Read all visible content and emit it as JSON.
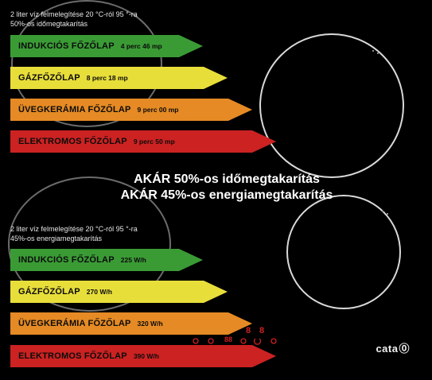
{
  "section_top": {
    "header_line1": "2 liter víz felmelegítése 20 °C-ról 95 °-ra",
    "header_line2": "50%-os időmegtakarítás",
    "bars": [
      {
        "name": "INDUKCIÓS FŐZŐLAP",
        "value": "4 perc 46 mp",
        "color": "#3a9b35"
      },
      {
        "name": "GÁZFŐZŐLAP",
        "value": "8 perc 18 mp",
        "color": "#e8de3a"
      },
      {
        "name": "ÜVEGKERÁMIA FŐZŐLAP",
        "value": "9 perc 00 mp",
        "color": "#e58a24"
      },
      {
        "name": "ELEKTROMOS FŐZŐLAP",
        "value": "9 perc 50 mp",
        "color": "#cc2222"
      }
    ]
  },
  "headline": {
    "line1": "AKÁR 50%-os időmegtakarítás",
    "line2": "AKÁR 45%-os energiamegtakarítás"
  },
  "section_bottom": {
    "header_line1": "2 liter víz felmelegítése 20 °C-ról 95 °-ra",
    "header_line2": "45%-os energiamegtakarítás",
    "bars": [
      {
        "name": "INDUKCIÓS FŐZŐLAP",
        "value": "225 W/h",
        "color": "#3a9b35"
      },
      {
        "name": "GÁZFŐZŐLAP",
        "value": "270 W/h",
        "color": "#e8de3a"
      },
      {
        "name": "ÜVEGKERÁMIA FŐZŐLAP",
        "value": "320 W/h",
        "color": "#e58a24"
      },
      {
        "name": "ELEKTROMOS FŐZŐLAP",
        "value": "390 W/h",
        "color": "#cc2222"
      }
    ]
  },
  "controls": {
    "digits_a": "8",
    "digits_b": "8",
    "digits_c": "88"
  },
  "brand": {
    "logo": "cata"
  }
}
